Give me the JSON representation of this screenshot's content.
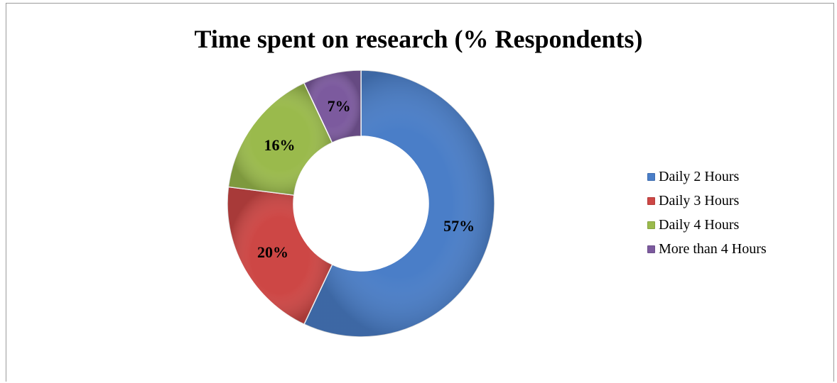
{
  "chart_data": {
    "type": "pie",
    "donut": true,
    "title": "Time spent on research (% Respondents)",
    "categories": [
      "Daily 2 Hours",
      "Daily 3 Hours",
      "Daily 4 Hours",
      "More than 4 Hours"
    ],
    "values": [
      57,
      20,
      16,
      7
    ],
    "labels": [
      "57%",
      "20%",
      "16%",
      "7%"
    ],
    "colors": [
      "#4a7ec8",
      "#cd4745",
      "#9aba4c",
      "#7c5a9e"
    ],
    "legend_position": "right",
    "start_angle": "top",
    "direction": "clockwise"
  }
}
